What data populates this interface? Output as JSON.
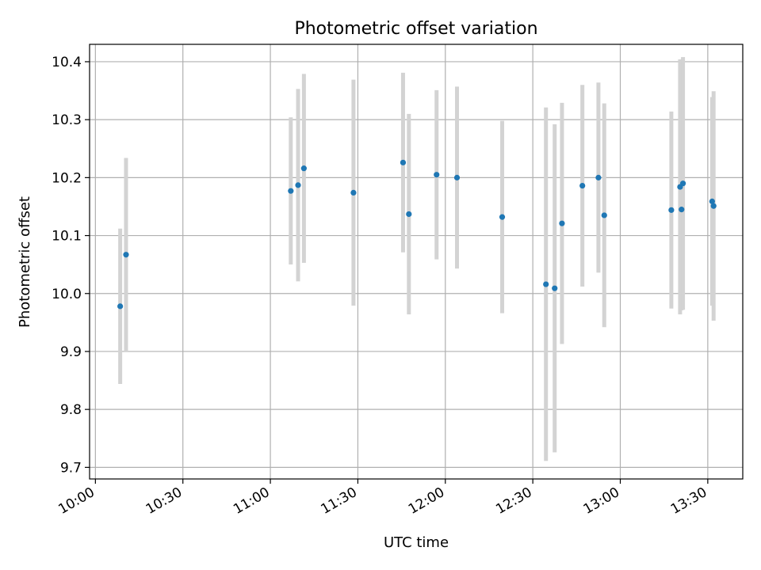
{
  "chart_data": {
    "type": "scatter",
    "title": "Photometric offset variation",
    "xlabel": "UTC time",
    "ylabel": "Photometric offset",
    "xlim": [
      "09:58",
      "13:42"
    ],
    "ylim": [
      9.68,
      10.43
    ],
    "x_ticks": [
      "10:00",
      "10:30",
      "11:00",
      "11:30",
      "12:00",
      "12:30",
      "13:00",
      "13:30"
    ],
    "y_ticks": [
      "9.7",
      "9.8",
      "9.9",
      "10.0",
      "10.1",
      "10.2",
      "10.3",
      "10.4"
    ],
    "grid": true,
    "legend": "none",
    "colors": {
      "marker": "#1f77b4",
      "errorbar": "#d3d3d3",
      "grid": "#b0b0b0"
    },
    "points": [
      {
        "x": "10:08:30",
        "y": 9.978,
        "err": 0.134
      },
      {
        "x": "10:10:30",
        "y": 10.067,
        "err": 0.167
      },
      {
        "x": "11:07:00",
        "y": 10.177,
        "err": 0.127
      },
      {
        "x": "11:09:30",
        "y": 10.187,
        "err": 0.166
      },
      {
        "x": "11:11:30",
        "y": 10.216,
        "err": 0.163
      },
      {
        "x": "11:28:30",
        "y": 10.174,
        "err": 0.195
      },
      {
        "x": "11:45:30",
        "y": 10.226,
        "err": 0.155
      },
      {
        "x": "11:47:30",
        "y": 10.137,
        "err": 0.173
      },
      {
        "x": "11:57:00",
        "y": 10.205,
        "err": 0.146
      },
      {
        "x": "12:04:00",
        "y": 10.2,
        "err": 0.157
      },
      {
        "x": "12:19:30",
        "y": 10.132,
        "err": 0.166
      },
      {
        "x": "12:34:30",
        "y": 10.016,
        "err": 0.305
      },
      {
        "x": "12:37:30",
        "y": 10.009,
        "err": 0.283
      },
      {
        "x": "12:40:00",
        "y": 10.121,
        "err": 0.208
      },
      {
        "x": "12:47:00",
        "y": 10.186,
        "err": 0.174
      },
      {
        "x": "12:52:30",
        "y": 10.2,
        "err": 0.164
      },
      {
        "x": "12:54:30",
        "y": 10.135,
        "err": 0.193
      },
      {
        "x": "13:17:30",
        "y": 10.144,
        "err": 0.17
      },
      {
        "x": "13:20:30",
        "y": 10.184,
        "err": 0.22
      },
      {
        "x": "13:21:00",
        "y": 10.145,
        "err": 0.174
      },
      {
        "x": "13:21:30",
        "y": 10.19,
        "err": 0.218
      },
      {
        "x": "13:31:30",
        "y": 10.159,
        "err": 0.18
      },
      {
        "x": "13:32:00",
        "y": 10.151,
        "err": 0.198
      }
    ]
  }
}
